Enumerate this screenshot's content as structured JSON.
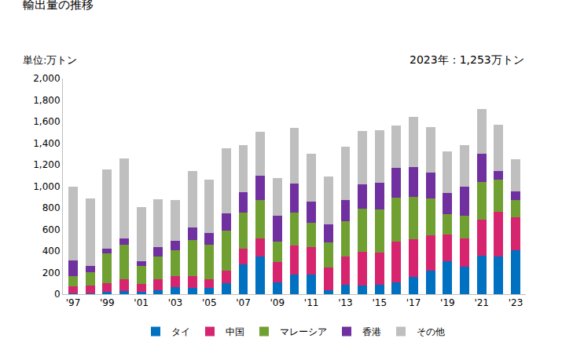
{
  "chart_data": {
    "type": "bar",
    "stacked": true,
    "title": "輸出量の推移",
    "y_label": "単位:万トン",
    "annotations": [
      "2023年：1,253万トン"
    ],
    "categories": [
      "'97",
      null,
      "'99",
      null,
      "'01",
      null,
      "'03",
      null,
      "'05",
      null,
      "'07",
      null,
      "'09",
      null,
      "'11",
      null,
      "'13",
      null,
      "'15",
      null,
      "'17",
      null,
      "'19",
      null,
      "'21",
      null,
      "'23"
    ],
    "series": [
      {
        "name": "タイ",
        "color": "#0070c0",
        "values": [
          10,
          10,
          25,
          30,
          20,
          40,
          65,
          60,
          55,
          100,
          275,
          350,
          110,
          180,
          180,
          40,
          85,
          80,
          85,
          110,
          160,
          220,
          305,
          255,
          355,
          350,
          410
        ]
      },
      {
        "name": "中国",
        "color": "#d6246e",
        "values": [
          60,
          70,
          80,
          105,
          75,
          100,
          100,
          110,
          85,
          120,
          150,
          165,
          190,
          270,
          255,
          210,
          265,
          310,
          300,
          380,
          350,
          325,
          250,
          265,
          335,
          415,
          305
        ]
      },
      {
        "name": "マレーシア",
        "color": "#70a032",
        "values": [
          95,
          125,
          275,
          325,
          170,
          210,
          240,
          330,
          315,
          370,
          335,
          355,
          190,
          305,
          230,
          230,
          330,
          405,
          400,
          405,
          390,
          345,
          185,
          210,
          350,
          295,
          155
        ]
      },
      {
        "name": "香港",
        "color": "#7030a0",
        "values": [
          145,
          60,
          45,
          60,
          40,
          85,
          90,
          115,
          110,
          160,
          185,
          230,
          235,
          270,
          195,
          165,
          190,
          220,
          245,
          275,
          275,
          235,
          200,
          265,
          265,
          80,
          80
        ]
      },
      {
        "name": "その他",
        "color": "#bfbfbf",
        "values": [
          690,
          620,
          735,
          740,
          505,
          445,
          375,
          525,
          500,
          605,
          435,
          405,
          350,
          520,
          445,
          445,
          500,
          495,
          490,
          395,
          470,
          425,
          385,
          385,
          415,
          430,
          303
        ]
      }
    ],
    "ylim": [
      0,
      2000
    ],
    "yticks": [
      0,
      200,
      400,
      600,
      800,
      {
        "value": 1000,
        "label": "1,000"
      },
      {
        "value": 1200,
        "label": "1,200"
      },
      {
        "value": 1400,
        "label": "1,400"
      },
      {
        "value": 1600,
        "label": "1,600"
      },
      {
        "value": 1800,
        "label": "1,800"
      },
      {
        "value": 2000,
        "label": "2,000"
      }
    ],
    "grid": false,
    "legend": "bottom"
  }
}
